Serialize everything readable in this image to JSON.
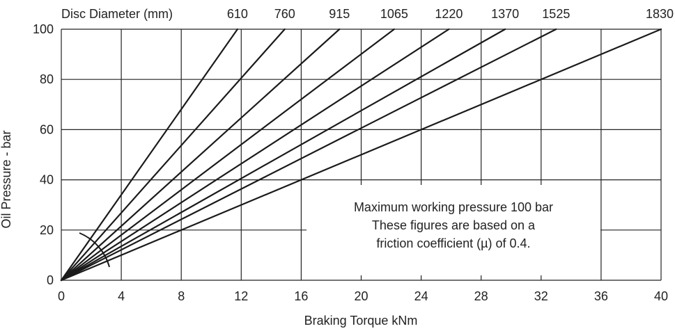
{
  "chart_data": {
    "type": "line",
    "title": "",
    "xlabel": "Braking Torque kNm",
    "ylabel": "Oil Pressure - bar",
    "xlim": [
      0,
      40
    ],
    "ylim": [
      0,
      100
    ],
    "x_ticks": [
      "0",
      "4",
      "8",
      "12",
      "16",
      "20",
      "24",
      "28",
      "32",
      "36",
      "40"
    ],
    "y_ticks": [
      "0",
      "20",
      "40",
      "60",
      "80",
      "100"
    ],
    "grid": true,
    "top_axis_label": "Disc Diameter (mm)",
    "series": [
      {
        "name": "610",
        "x": [
          0,
          11.75
        ],
        "y": [
          0,
          100
        ]
      },
      {
        "name": "760",
        "x": [
          0,
          14.9
        ],
        "y": [
          0,
          100
        ]
      },
      {
        "name": "915",
        "x": [
          0,
          18.55
        ],
        "y": [
          0,
          100
        ]
      },
      {
        "name": "1065",
        "x": [
          0,
          22.2
        ],
        "y": [
          0,
          100
        ]
      },
      {
        "name": "1220",
        "x": [
          0,
          25.85
        ],
        "y": [
          0,
          100
        ]
      },
      {
        "name": "1370",
        "x": [
          0,
          29.6
        ],
        "y": [
          0,
          100
        ]
      },
      {
        "name": "1525",
        "x": [
          0,
          33.0
        ],
        "y": [
          0,
          100
        ]
      },
      {
        "name": "1830",
        "x": [
          0,
          40.0
        ],
        "y": [
          0,
          100
        ]
      }
    ],
    "annotation_lines": [
      "Maximum working pressure 100 bar",
      "These figures are based on a",
      "friction coefficient (µ) of 0.4."
    ],
    "colors": {
      "lines": "#1a1a1a",
      "grid": "#222222",
      "text": "#222222"
    }
  }
}
